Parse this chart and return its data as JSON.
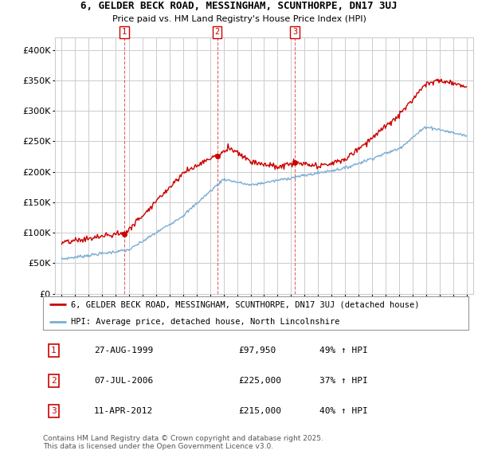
{
  "title": "6, GELDER BECK ROAD, MESSINGHAM, SCUNTHORPE, DN17 3UJ",
  "subtitle": "Price paid vs. HM Land Registry's House Price Index (HPI)",
  "legend_line1": "6, GELDER BECK ROAD, MESSINGHAM, SCUNTHORPE, DN17 3UJ (detached house)",
  "legend_line2": "HPI: Average price, detached house, North Lincolnshire",
  "footer": "Contains HM Land Registry data © Crown copyright and database right 2025.\nThis data is licensed under the Open Government Licence v3.0.",
  "transactions": [
    {
      "label": "1",
      "date": "27-AUG-1999",
      "price": 97950,
      "hpi_pct": "49% ↑ HPI",
      "x": 1999.65
    },
    {
      "label": "2",
      "date": "07-JUL-2006",
      "price": 225000,
      "hpi_pct": "37% ↑ HPI",
      "x": 2006.52
    },
    {
      "label": "3",
      "date": "11-APR-2012",
      "price": 215000,
      "hpi_pct": "40% ↑ HPI",
      "x": 2012.28
    }
  ],
  "red_color": "#cc0000",
  "blue_color": "#7aadd4",
  "ylim": [
    0,
    420000
  ],
  "yticks": [
    0,
    50000,
    100000,
    150000,
    200000,
    250000,
    300000,
    350000,
    400000
  ],
  "bg_color": "#ffffff",
  "grid_color": "#cccccc",
  "xlim_left": 1994.5,
  "xlim_right": 2025.5
}
